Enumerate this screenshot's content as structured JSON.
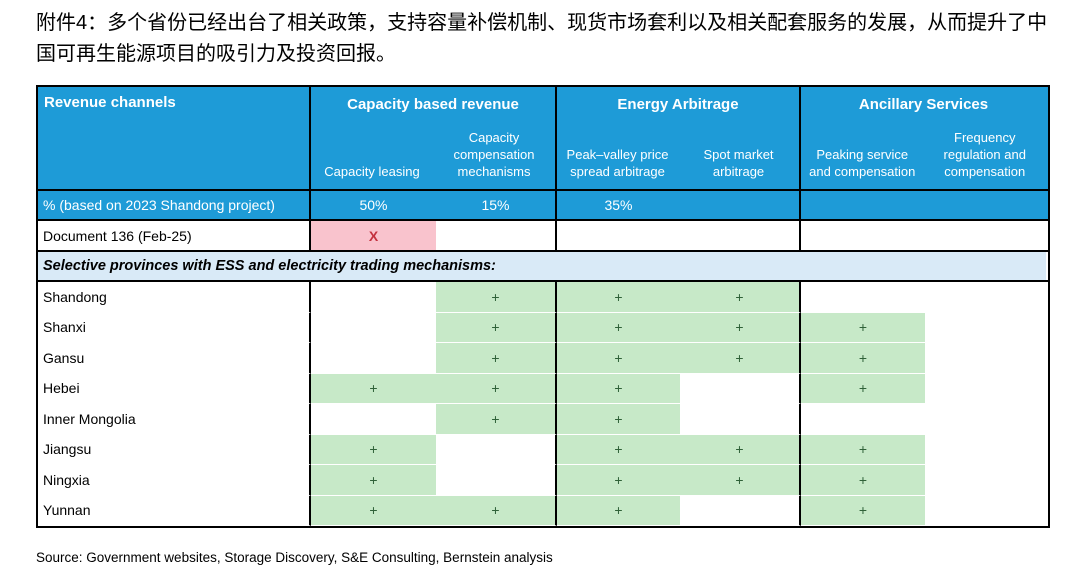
{
  "title": "附件4：多个省份已经出台了相关政策，支持容量补偿机制、现货市场套利以及相关配套服务的发展，从而提升了中国可再生能源项目的吸引力及投资回报。",
  "colors": {
    "header_blue": "#1E9BD7",
    "light_blue": "#D9EAF7",
    "green": "#C7E9C8",
    "pink": "#F9C3CD",
    "x_red": "#C4323F",
    "plus_green": "#2F6138"
  },
  "table": {
    "corner_header": "Revenue channels",
    "groups": [
      {
        "label": "Capacity based revenue",
        "columns": [
          "Capacity leasing",
          "Capacity compensation mechanisms"
        ]
      },
      {
        "label": "Energy Arbitrage",
        "columns": [
          "Peak–valley price spread arbitrage",
          "Spot market arbitrage"
        ]
      },
      {
        "label": "Ancillary Services",
        "columns": [
          "Peaking service and compensation",
          "Frequency regulation and compensation"
        ]
      }
    ],
    "percent_row": {
      "label": "% (based on 2023 Shandong project)",
      "capacity_leasing": "50%",
      "capacity_compensation": "15%",
      "energy_arbitrage": "35%",
      "ancillary": ""
    },
    "document_row": {
      "label": "Document 136 (Feb-25)",
      "x_mark": "X"
    },
    "section_row": "Selective provinces with ESS and electricity trading mechanisms:",
    "plus_sign": "+",
    "province_columns": [
      "Capacity leasing",
      "Capacity compensation mechanisms",
      "Peak–valley price spread arbitrage",
      "Spot market arbitrage",
      "Peaking service and compensation",
      "Frequency regulation and compensation"
    ],
    "provinces": [
      {
        "name": "Shandong",
        "cells": [
          0,
          1,
          1,
          1,
          0,
          0
        ]
      },
      {
        "name": "Shanxi",
        "cells": [
          0,
          1,
          1,
          1,
          1,
          0
        ]
      },
      {
        "name": "Gansu",
        "cells": [
          0,
          1,
          1,
          1,
          1,
          0
        ]
      },
      {
        "name": "Hebei",
        "cells": [
          1,
          1,
          1,
          0,
          1,
          0
        ]
      },
      {
        "name": "Inner Mongolia",
        "cells": [
          0,
          1,
          1,
          0,
          0,
          0
        ]
      },
      {
        "name": "Jiangsu",
        "cells": [
          1,
          0,
          1,
          1,
          1,
          0
        ]
      },
      {
        "name": "Ningxia",
        "cells": [
          1,
          0,
          1,
          1,
          1,
          0
        ]
      },
      {
        "name": "Yunnan",
        "cells": [
          1,
          1,
          1,
          0,
          1,
          0
        ]
      }
    ]
  },
  "source": "Source: Government websites, Storage Discovery, S&E Consulting, Bernstein analysis"
}
